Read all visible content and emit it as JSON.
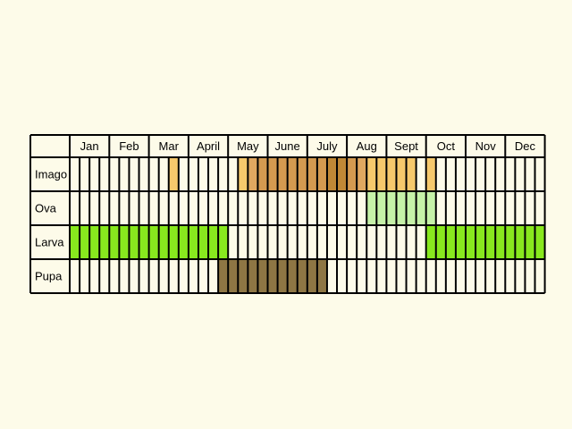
{
  "chart_data": {
    "type": "table",
    "months": [
      "Jan",
      "Feb",
      "Mar",
      "April",
      "May",
      "June",
      "July",
      "Aug",
      "Sept",
      "Oct",
      "Nov",
      "Dec"
    ],
    "subdivisions_per_month": 4,
    "colors": {
      "background": "#fdfbe9",
      "cell": "#fdfbe9",
      "grid": "#000000",
      "imago_pale": "#f6c96c",
      "imago_light": "#e0a860",
      "imago_mid": "#d49a50",
      "imago_dark": "#c08836",
      "ova": "#c6f2a8",
      "larva": "#88e81e",
      "pupa": "#8e7644"
    },
    "rows": [
      {
        "label": "Imago",
        "spans": [
          {
            "from": 2.5,
            "to": 2.75,
            "color": "imago_pale"
          },
          {
            "from": 4.25,
            "to": 4.5,
            "color": "imago_pale"
          },
          {
            "from": 4.5,
            "to": 4.75,
            "color": "imago_light"
          },
          {
            "from": 4.75,
            "to": 6.5,
            "color": "imago_mid"
          },
          {
            "from": 6.5,
            "to": 7.0,
            "color": "imago_dark"
          },
          {
            "from": 7.0,
            "to": 7.25,
            "color": "imago_mid"
          },
          {
            "from": 7.25,
            "to": 7.5,
            "color": "imago_light"
          },
          {
            "from": 7.5,
            "to": 8.75,
            "color": "imago_pale"
          },
          {
            "from": 9.0,
            "to": 9.25,
            "color": "imago_pale"
          }
        ]
      },
      {
        "label": "Ova",
        "spans": [
          {
            "from": 7.5,
            "to": 9.25,
            "color": "ova"
          }
        ]
      },
      {
        "label": "Larva",
        "spans": [
          {
            "from": 0,
            "to": 4.0,
            "color": "larva"
          },
          {
            "from": 9.0,
            "to": 12.0,
            "color": "larva"
          }
        ]
      },
      {
        "label": "Pupa",
        "spans": [
          {
            "from": 3.75,
            "to": 4.0,
            "color": "pupa"
          },
          {
            "from": 4.0,
            "to": 6.5,
            "color": "pupa"
          }
        ]
      }
    ]
  }
}
